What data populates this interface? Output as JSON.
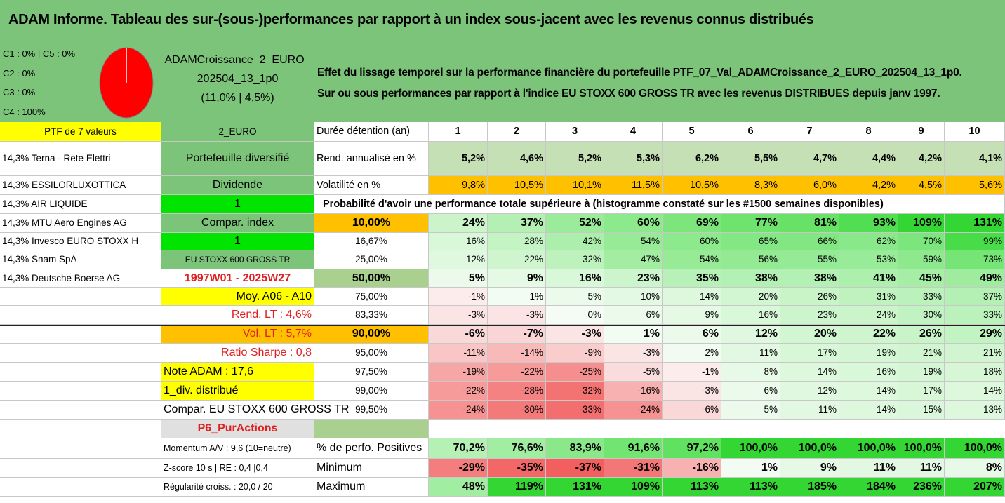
{
  "title": "ADAM Informe. Tableau des sur-(sous-)performances par rapport à un index sous-jacent avec les revenus connus distribués",
  "legend": [
    "C1 : 0% | C5 : 0%",
    "C2 : 0%",
    "C3 : 0%",
    "C4 : 100%"
  ],
  "pie_color": "#ff0000",
  "code": [
    "ADAMCroissance_2_EURO_",
    "202504_13_1p0",
    "(11,0% | 4,5%)"
  ],
  "description": [
    "Effet du lissage temporel sur la performance financière du portefeuille PTF_07_Val_ADAMCroissance_2_EURO_202504_13_1p0.",
    "Sur ou sous performances par rapport à l'indice EU STOXX 600 GROSS TR avec les revenus DISTRIBUES depuis janv 1997."
  ],
  "colA": [
    "PTF de 7 valeurs",
    "14,3% Terna - Rete Elettri",
    "14,3% ESSILORLUXOTTICA",
    "14,3% AIR LIQUIDE",
    "14,3% MTU Aero Engines AG",
    "14,3% Invesco EURO STOXX H",
    "14,3% Snam SpA",
    "14,3% Deutsche Boerse AG"
  ],
  "colB": [
    "2_EURO",
    "Portefeuille diversifié",
    "Dividende",
    "1",
    "Compar. index",
    "1",
    "EU STOXX 600 GROSS TR",
    "1997W01 - 2025W27",
    "Moy. A06 - A10",
    "Rend. LT : 4,6%",
    "Vol. LT : 5,7%",
    "Ratio Sharpe : 0,8",
    "Note ADAM : 17,6",
    "1_div. distribué",
    "Compar. EU STOXX 600 GROSS TR",
    "P6_PurActions",
    "Momentum A/V : 9,6 (10=neutre)",
    "Z-score 10 s | RE : 0,4 |0,4",
    "Régularité croiss. : 20,0 / 20"
  ],
  "header": {
    "label": "Durée détention (an)",
    "years": [
      "1",
      "2",
      "3",
      "4",
      "5",
      "6",
      "7",
      "8",
      "9",
      "10"
    ]
  },
  "rend": {
    "label": "Rend. annualisé en %",
    "values": [
      "5,2%",
      "4,6%",
      "5,2%",
      "5,3%",
      "6,2%",
      "5,5%",
      "4,7%",
      "4,4%",
      "4,2%",
      "4,1%"
    ]
  },
  "vol": {
    "label": "Volatilité en %",
    "values": [
      "9,8%",
      "10,5%",
      "10,1%",
      "11,5%",
      "10,5%",
      "8,3%",
      "6,0%",
      "4,2%",
      "4,5%",
      "5,6%"
    ]
  },
  "prob_title": "Probabilité d'avoir une performance totale supérieure à (histogramme constaté sur les #1500 semaines disponibles)",
  "prob_rows": [
    {
      "threshold": "10,00%",
      "values": [
        "24%",
        "37%",
        "52%",
        "60%",
        "69%",
        "77%",
        "81%",
        "93%",
        "109%",
        "131%"
      ]
    },
    {
      "threshold": "16,67%",
      "values": [
        "16%",
        "28%",
        "42%",
        "54%",
        "60%",
        "65%",
        "66%",
        "62%",
        "70%",
        "99%"
      ]
    },
    {
      "threshold": "25,00%",
      "values": [
        "12%",
        "22%",
        "32%",
        "47%",
        "54%",
        "56%",
        "55%",
        "53%",
        "59%",
        "73%"
      ]
    },
    {
      "threshold": "50,00%",
      "values": [
        "5%",
        "9%",
        "16%",
        "23%",
        "35%",
        "38%",
        "38%",
        "41%",
        "45%",
        "49%"
      ]
    },
    {
      "threshold": "75,00%",
      "values": [
        "-1%",
        "1%",
        "5%",
        "10%",
        "14%",
        "20%",
        "26%",
        "31%",
        "33%",
        "37%"
      ]
    },
    {
      "threshold": "83,33%",
      "values": [
        "-3%",
        "-3%",
        "0%",
        "6%",
        "9%",
        "16%",
        "23%",
        "24%",
        "30%",
        "33%"
      ]
    },
    {
      "threshold": "90,00%",
      "values": [
        "-6%",
        "-7%",
        "-3%",
        "1%",
        "6%",
        "12%",
        "20%",
        "22%",
        "26%",
        "29%"
      ]
    },
    {
      "threshold": "95,00%",
      "values": [
        "-11%",
        "-14%",
        "-9%",
        "-3%",
        "2%",
        "11%",
        "17%",
        "19%",
        "21%",
        "21%"
      ]
    },
    {
      "threshold": "97,50%",
      "values": [
        "-19%",
        "-22%",
        "-25%",
        "-5%",
        "-1%",
        "8%",
        "14%",
        "16%",
        "19%",
        "18%"
      ]
    },
    {
      "threshold": "99,00%",
      "values": [
        "-22%",
        "-28%",
        "-32%",
        "-16%",
        "-3%",
        "6%",
        "12%",
        "14%",
        "17%",
        "14%"
      ]
    },
    {
      "threshold": "99,50%",
      "values": [
        "-24%",
        "-30%",
        "-33%",
        "-24%",
        "-6%",
        "5%",
        "11%",
        "14%",
        "15%",
        "13%"
      ]
    }
  ],
  "stats": [
    {
      "label": "% de perfo. Positives",
      "values": [
        "70,2%",
        "76,6%",
        "83,9%",
        "91,6%",
        "97,2%",
        "100,0%",
        "100,0%",
        "100,0%",
        "100,0%",
        "100,0%"
      ]
    },
    {
      "label": "Minimum",
      "values": [
        "-29%",
        "-35%",
        "-37%",
        "-31%",
        "-16%",
        "1%",
        "9%",
        "11%",
        "11%",
        "8%"
      ]
    },
    {
      "label": "Maximum",
      "values": [
        "48%",
        "119%",
        "131%",
        "109%",
        "113%",
        "113%",
        "185%",
        "184%",
        "236%",
        "207%"
      ]
    }
  ]
}
